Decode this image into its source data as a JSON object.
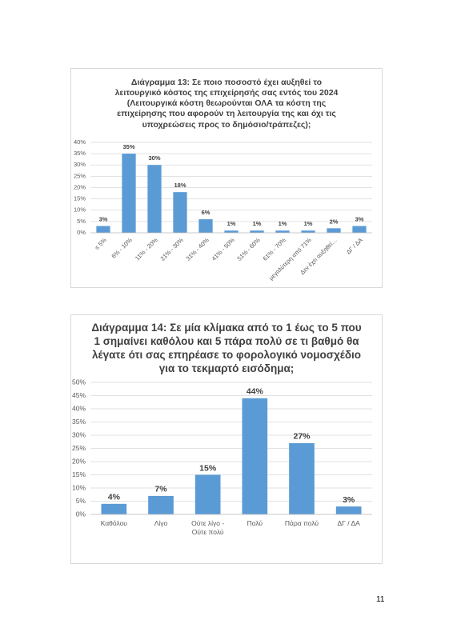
{
  "chart_data": [
    {
      "type": "bar",
      "title": "Διάγραμμα 13: Σε ποιο ποσοστό έχει αυξηθεί το λειτουργικό κόστος της επιχείρησής σας εντός του 2024 (Λειτουργικά κόστη θεωρούνται ΟΛΑ τα κόστη της επιχείρησης που αφορούν τη λειτουργία της και όχι τις υποχρεώσεις προς το δημόσιο/τράπεζες);",
      "categories": [
        "≤ 5%",
        "6% - 10%",
        "11% - 20%",
        "21% - 30%",
        "31% - 40%",
        "41% - 50%",
        "51% - 60%",
        "61% - 70%",
        "μεγαλύτερη από 71%",
        "Δεν έχει αυξηθεί…",
        "ΔΓ / ΔΑ"
      ],
      "values": [
        3,
        35,
        30,
        18,
        6,
        1,
        1,
        1,
        1,
        2,
        3
      ],
      "value_labels": [
        "3%",
        "35%",
        "30%",
        "18%",
        "6%",
        "1%",
        "1%",
        "1%",
        "1%",
        "2%",
        "3%"
      ],
      "color": "#5b9bd5",
      "ylim": [
        0,
        40
      ],
      "yticks": [
        {
          "value": 0,
          "label": "0%"
        },
        {
          "value": 5,
          "label": "5%"
        },
        {
          "value": 10,
          "label": "10%"
        },
        {
          "value": 15,
          "label": "15%"
        },
        {
          "value": 20,
          "label": "20%"
        },
        {
          "value": 25,
          "label": "25%"
        },
        {
          "value": 30,
          "label": "30%"
        },
        {
          "value": 35,
          "label": "35%"
        },
        {
          "value": 40,
          "label": "40%"
        }
      ],
      "grid": true
    },
    {
      "type": "bar",
      "title": "Διάγραμμα 14: Σε μία κλίμακα από το 1 έως το 5 που 1 σημαίνει καθόλου και 5 πάρα πολύ σε τι βαθμό θα λέγατε ότι σας επηρέασε το φορολογικό νομοσχέδιο για το τεκμαρτό εισόδημα;",
      "categories": [
        "Καθόλου",
        "Λίγο",
        "Ούτε λίγο - Ούτε πολύ",
        "Πολύ",
        "Πάρα πολύ",
        "ΔΓ / ΔΑ"
      ],
      "values": [
        4,
        7,
        15,
        44,
        27,
        3
      ],
      "value_labels": [
        "4%",
        "7%",
        "15%",
        "44%",
        "27%",
        "3%"
      ],
      "color": "#5b9bd5",
      "ylim": [
        0,
        50
      ],
      "yticks": [
        {
          "value": 0,
          "label": "0%"
        },
        {
          "value": 5,
          "label": "5%"
        },
        {
          "value": 10,
          "label": "10%"
        },
        {
          "value": 15,
          "label": "15%"
        },
        {
          "value": 20,
          "label": "20%"
        },
        {
          "value": 25,
          "label": "25%"
        },
        {
          "value": 30,
          "label": "30%"
        },
        {
          "value": 35,
          "label": "35%"
        },
        {
          "value": 40,
          "label": "40%"
        },
        {
          "value": 45,
          "label": "45%"
        },
        {
          "value": 50,
          "label": "50%"
        }
      ],
      "grid": true
    }
  ],
  "page_number": "11"
}
